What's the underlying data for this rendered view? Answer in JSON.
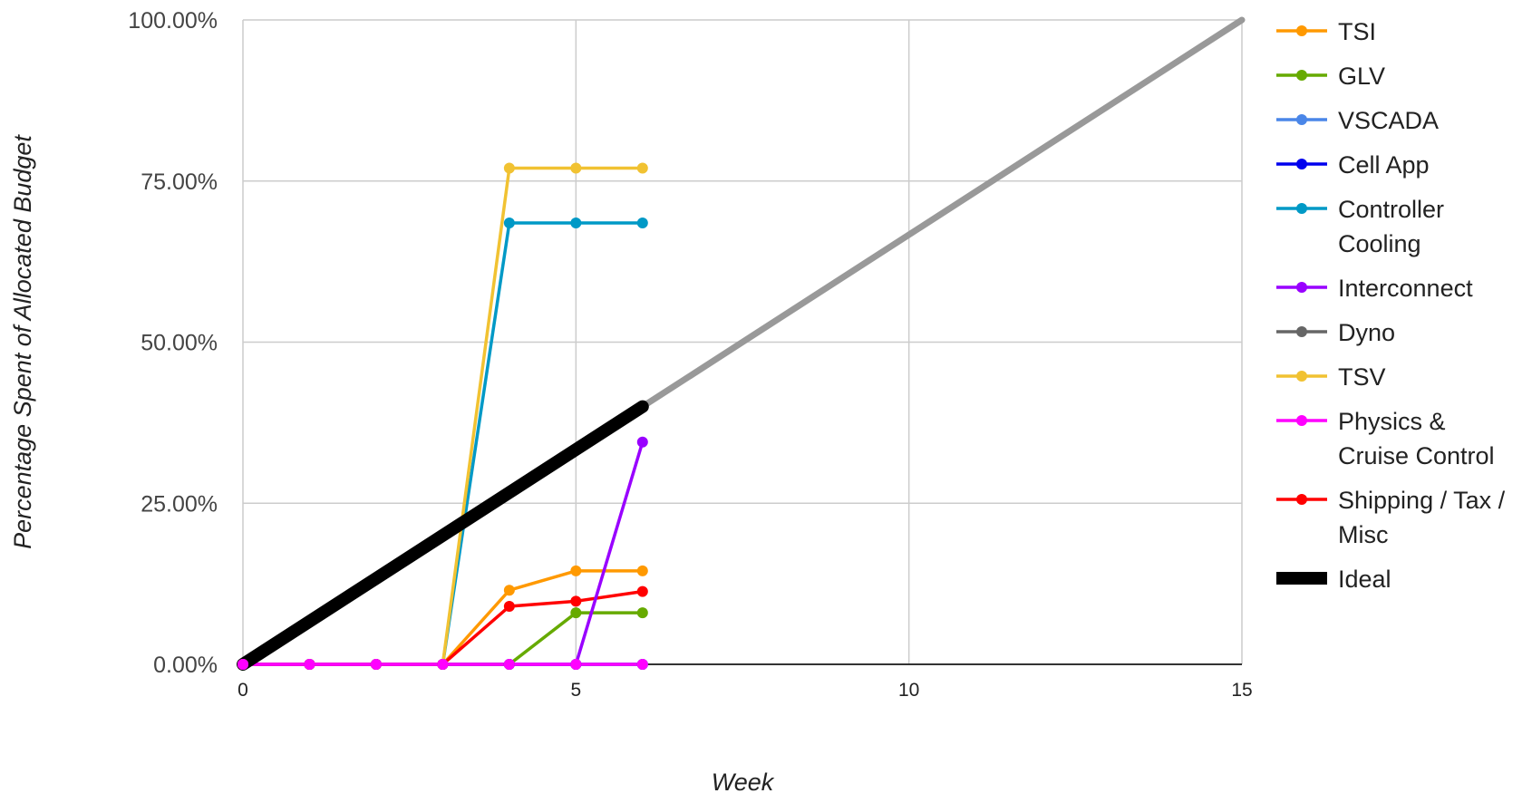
{
  "chart_data": {
    "type": "line",
    "title": "",
    "xlabel": "Week",
    "ylabel": "Percentage Spent of Allocated Budget",
    "xlim": [
      0,
      15
    ],
    "ylim": [
      0,
      100
    ],
    "x_ticks": [
      "0",
      "5",
      "10",
      "15"
    ],
    "x_tick_values": [
      0,
      5,
      10,
      15
    ],
    "y_ticks": [
      "0.00%",
      "25.00%",
      "50.00%",
      "75.00%",
      "100.00%"
    ],
    "y_tick_values": [
      0,
      25,
      50,
      75,
      100
    ],
    "grid": true,
    "legend_position": "right",
    "series": [
      {
        "name": "TSI",
        "lines": [
          "TSI"
        ],
        "color": "#ff9900",
        "x": [
          0,
          1,
          2,
          3,
          4,
          5,
          6
        ],
        "y": [
          0,
          0,
          0,
          0,
          11.5,
          14.5,
          14.5
        ]
      },
      {
        "name": "GLV",
        "lines": [
          "GLV"
        ],
        "color": "#66aa00",
        "x": [
          0,
          1,
          2,
          3,
          4,
          5,
          6
        ],
        "y": [
          0,
          0,
          0,
          0,
          0,
          8,
          8
        ]
      },
      {
        "name": "VSCADA",
        "lines": [
          "VSCADA"
        ],
        "color": "#4a86e8",
        "x": [
          0,
          1,
          2,
          3,
          4,
          5,
          6
        ],
        "y": [
          0,
          0,
          0,
          0,
          0,
          0,
          0
        ]
      },
      {
        "name": "Cell App",
        "lines": [
          "Cell App"
        ],
        "color": "#0000ee",
        "x": [
          0,
          1,
          2,
          3,
          4,
          5,
          6
        ],
        "y": [
          0,
          0,
          0,
          0,
          0,
          0,
          0
        ]
      },
      {
        "name": "Controller Cooling",
        "lines": [
          "Controller",
          "Cooling"
        ],
        "color": "#0099c6",
        "x": [
          0,
          1,
          2,
          3,
          4,
          5,
          6
        ],
        "y": [
          0,
          0,
          0,
          0,
          68.5,
          68.5,
          68.5
        ]
      },
      {
        "name": "Interconnect",
        "lines": [
          "Interconnect"
        ],
        "color": "#9900ff",
        "x": [
          0,
          1,
          2,
          3,
          4,
          5,
          6
        ],
        "y": [
          0,
          0,
          0,
          0,
          0,
          0,
          34.5
        ]
      },
      {
        "name": "Dyno",
        "lines": [
          "Dyno"
        ],
        "color": "#666666",
        "x": [
          0,
          1,
          2,
          3,
          4,
          5,
          6
        ],
        "y": [
          0,
          0,
          0,
          0,
          0,
          0,
          0
        ]
      },
      {
        "name": "TSV",
        "lines": [
          "TSV"
        ],
        "color": "#f1c232",
        "x": [
          0,
          1,
          2,
          3,
          4,
          5,
          6
        ],
        "y": [
          0,
          0,
          0,
          0,
          77,
          77,
          77
        ]
      },
      {
        "name": "Physics & Cruise Control",
        "lines": [
          "Physics &",
          "Cruise Control"
        ],
        "color": "#ff00ff",
        "x": [
          0,
          1,
          2,
          3,
          4,
          5,
          6
        ],
        "y": [
          0,
          0,
          0,
          0,
          0,
          0,
          0
        ]
      },
      {
        "name": "Shipping / Tax / Misc",
        "lines": [
          "Shipping / Tax /",
          "Misc"
        ],
        "color": "#ff0000",
        "x": [
          0,
          1,
          2,
          3,
          4,
          5,
          6
        ],
        "y": [
          0,
          0,
          0,
          0,
          9,
          9.8,
          11.3
        ]
      },
      {
        "name": "Ideal",
        "lines": [
          "Ideal"
        ],
        "color": "#000000",
        "style": "thick-no-markers",
        "x": [
          0,
          6
        ],
        "y": [
          0,
          40
        ]
      }
    ],
    "ideal_projection": {
      "color": "#999999",
      "x": [
        6,
        15
      ],
      "y": [
        40,
        100
      ]
    }
  }
}
